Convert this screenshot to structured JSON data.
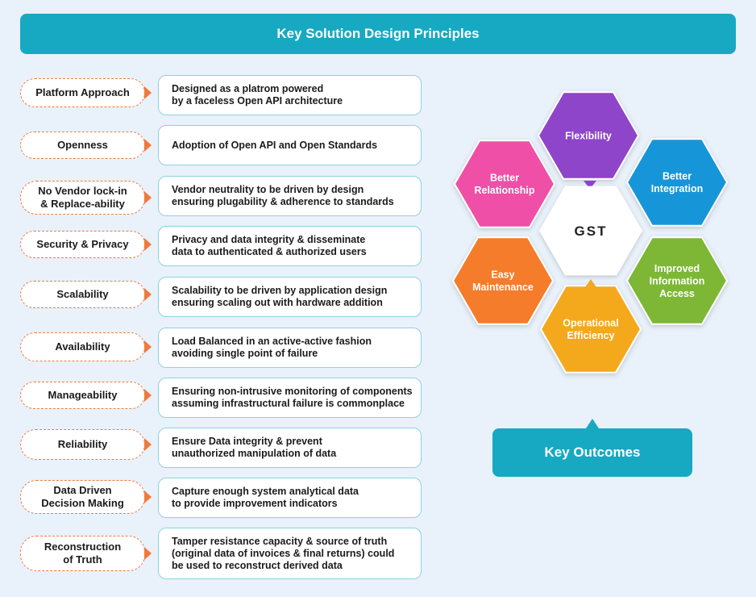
{
  "header": {
    "title": "Key Solution Design Principles"
  },
  "principles": [
    {
      "name": "Platform Approach",
      "description": "Designed as a platrom powered\nby a faceless Open API architecture"
    },
    {
      "name": "Openness",
      "description": "Adoption of Open API and Open Standards"
    },
    {
      "name": "No Vendor lock-in\n& Replace-ability",
      "description": "Vendor neutrality to be driven by design\nensuring plugability & adherence to standards"
    },
    {
      "name": "Security & Privacy",
      "description": "Privacy and data integrity & disseminate\ndata to authenticated & authorized users"
    },
    {
      "name": "Scalability",
      "description": "Scalability to be driven by application design\nensuring scaling out with hardware addition"
    },
    {
      "name": "Availability",
      "description": "Load Balanced in an active-active fashion\navoiding single point of failure"
    },
    {
      "name": "Manageability",
      "description": "Ensuring non-intrusive monitoring of components\nassuming infrastructural failure is commonplace"
    },
    {
      "name": "Reliability",
      "description": "Ensure Data integrity & prevent\nunauthorized manipulation of data"
    },
    {
      "name": "Data Driven\nDecision Making",
      "description": "Capture enough system analytical data\nto provide improvement indicators"
    },
    {
      "name": "Reconstruction\nof Truth",
      "description": "Tamper resistance capacity & source of truth\n(original data of invoices & final returns) could\nbe used to reconstruct derived data"
    }
  ],
  "hexagons": {
    "center": {
      "label": "GST",
      "color": "#ffffff"
    },
    "outcomes": [
      {
        "label": "Flexibility",
        "color": "#8e44c9"
      },
      {
        "label": "Better\nIntegration",
        "color": "#1396d8"
      },
      {
        "label": "Improved\nInformation\nAccess",
        "color": "#7db734"
      },
      {
        "label": "Operational\nEfficiency",
        "color": "#f4a81f"
      },
      {
        "label": "Easy\nMaintenance",
        "color": "#f57c2b"
      },
      {
        "label": "Better\nRelationship",
        "color": "#ef4fa6"
      }
    ]
  },
  "outcomes_box": {
    "title": "Key Outcomes"
  },
  "colors": {
    "accent": "#17a9c1",
    "dashed_border": "#f07a3c",
    "desc_border": "#8dd3df",
    "background": "#e9f1fb"
  }
}
